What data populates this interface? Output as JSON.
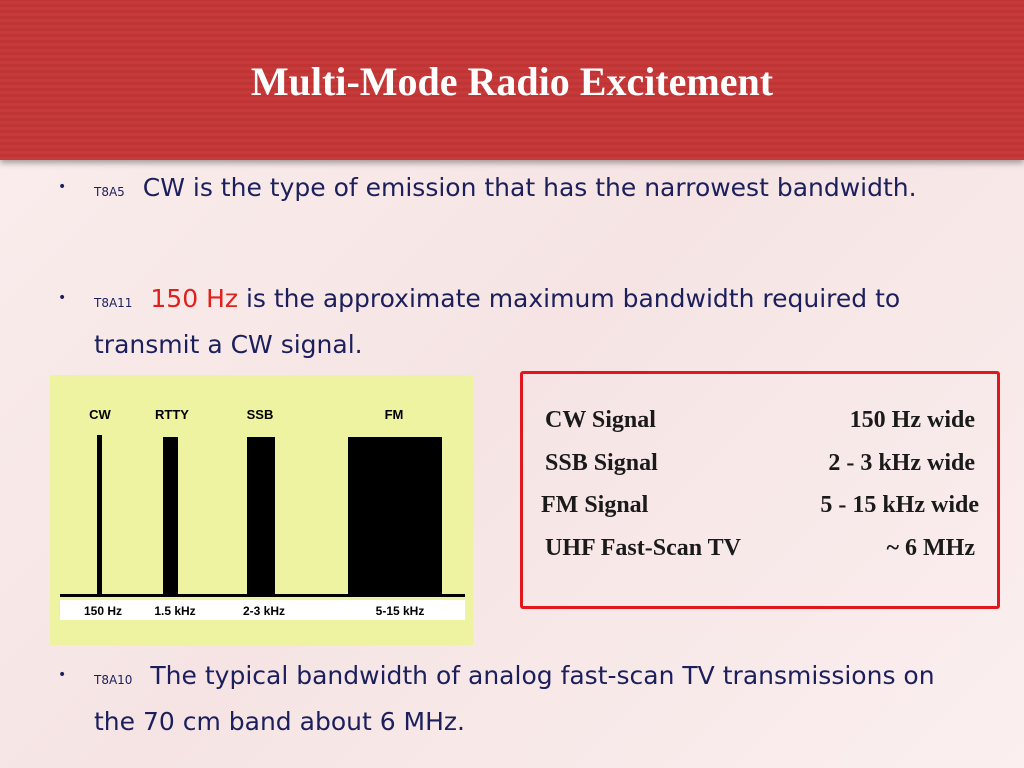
{
  "header": {
    "title": "Multi-Mode Radio Excitement"
  },
  "bullets": [
    {
      "code": "T8A5",
      "text": "CW is the type of emission that has the narrowest bandwidth."
    },
    {
      "code": "T8A11",
      "highlight": "150 Hz",
      "text": "is the approximate maximum bandwidth required to transmit a CW signal."
    },
    {
      "code": "T8A10",
      "text": "The typical bandwidth of analog fast-scan TV transmissions on the 70 cm band about 6 MHz."
    }
  ],
  "diagram": {
    "modes": [
      "CW",
      "RTTY",
      "SSB",
      "FM"
    ],
    "bandwidths": [
      "150 Hz",
      "1.5 kHz",
      "2-3 kHz",
      "5-15 kHz"
    ]
  },
  "table": {
    "rows": [
      [
        "CW Signal",
        "150 Hz wide"
      ],
      [
        "SSB Signal",
        "2 - 3 kHz wide"
      ],
      [
        "FM Signal",
        "5 - 15 kHz wide"
      ],
      [
        "UHF Fast-Scan TV",
        "~ 6 MHz"
      ]
    ]
  }
}
